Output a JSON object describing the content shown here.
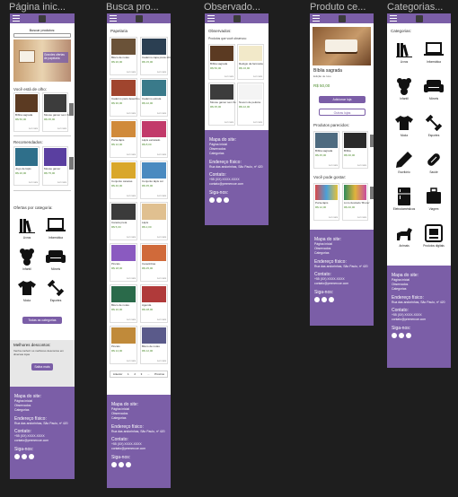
{
  "frames": {
    "home": "Página inic...",
    "search": "Busca pro...",
    "observed": "Observado...",
    "product": "Produto ce...",
    "categories": "Categorias..."
  },
  "colors": {
    "brand": "#7b5ea7",
    "background": "#1e1e1e"
  },
  "icons": {
    "menu": "hamburger-icon",
    "logo": "logo-icon"
  },
  "home": {
    "search_label": "Buscar produtos:",
    "banner_title": "Grandes ofertas de papelaria",
    "watching_title": "Você está de olho:",
    "watching": [
      {
        "name": "Bíblia sagrada",
        "price": "R$ 50,00"
      },
      {
        "name": "Mouse gamer sem fio",
        "price": "R$ 35,00"
      }
    ],
    "recommended_title": "Recomendados:",
    "recommended": [
      {
        "name": "Jogo de lápis",
        "price": "R$ 20,00"
      },
      {
        "name": "Mouse gamer",
        "price": "R$ 75,00"
      }
    ],
    "link": "Ler mais",
    "categories_title": "Ofertas por categoria:",
    "categories": [
      "Livros",
      "Informática",
      "Infantil",
      "Móveis",
      "Moda",
      "Esportes"
    ],
    "all_categories_btn": "Todas as categorias",
    "discounts_title": "Melhores descontos:",
    "discounts_text": "Venha conferir os melhores descontos em diversas lojas",
    "discounts_btn": "Saiba mais"
  },
  "search": {
    "title": "Papelaria",
    "items": [
      {
        "name": "Bloco de notas",
        "price": "R$ 20,00"
      },
      {
        "name": "Caderno capa preta 10m.",
        "price": "R$ 15,00"
      },
      {
        "name": "Caderno para desenho A5",
        "price": "R$ 30,00"
      },
      {
        "name": "Caderno estrela",
        "price": "R$ 22,00"
      },
      {
        "name": "Porta-lápis",
        "price": "R$ 12,00"
      },
      {
        "name": "Lápis estrelado",
        "price": "R$ 8,00"
      },
      {
        "name": "Conjunto canetas",
        "price": "R$ 40,00"
      },
      {
        "name": "Conjunto lápis cor",
        "price": "R$ 35,00"
      },
      {
        "name": "Caneta preta",
        "price": "R$ 5,00"
      },
      {
        "name": "Lápis",
        "price": "R$ 2,00"
      },
      {
        "name": "Pincéis",
        "price": "R$ 18,00"
      },
      {
        "name": "Canetinhas",
        "price": "R$ 25,00"
      },
      {
        "name": "Bloco de notas",
        "price": "R$ 10,00"
      },
      {
        "name": "Agenda",
        "price": "R$ 28,00"
      },
      {
        "name": "Pincéis",
        "price": "R$ 14,00"
      },
      {
        "name": "Bloco de notas",
        "price": "R$ 12,00"
      }
    ],
    "link": "Ler mais",
    "pagination": [
      "Anterior",
      "1",
      "2",
      "3",
      "...",
      "Próximo"
    ]
  },
  "observed": {
    "title": "Observados:",
    "subtitle": "Produtos que você observou:",
    "items": [
      {
        "name": "Bíblia sagrada",
        "price": "R$ 50,00"
      },
      {
        "name": "Relógio da farmácia",
        "price": "R$ 16,90"
      },
      {
        "name": "Mouse gamer sem fio",
        "price": "R$ 35,00"
      },
      {
        "name": "Nuvem de pelúcia",
        "price": "R$ 22,00"
      }
    ],
    "link": "Ler mais"
  },
  "product": {
    "name": "Bíblia sagrada",
    "subtitle": "Edição de luxo",
    "price": "R$ 50,00",
    "add_btn": "Adicionar loja",
    "other_btn": "Outras lojas",
    "related_title": "Produtos parecidos:",
    "related": [
      {
        "name": "Bíblia sagrada",
        "price": "R$ 45,00"
      },
      {
        "name": "Bíblia",
        "price": "R$ 30,00"
      }
    ],
    "liked_title": "Você pode gostar:",
    "liked": [
      {
        "name": "Porta-lápis",
        "price": "R$ 12,00"
      },
      {
        "name": "Livro ilustrado 'Bruno'",
        "price": "R$ 40,00"
      }
    ],
    "link": "Ler mais"
  },
  "categories": {
    "title": "Categorias:",
    "items": [
      "Livros",
      "Informática",
      "Infantil",
      "Móveis",
      "Moda",
      "Esportes",
      "Escritório",
      "Saúde",
      "Eletrodomésticos",
      "Viagem",
      "Animais",
      "Produtos digitais"
    ]
  },
  "footer": {
    "sitemap_title": "Mapa do site:",
    "sitemap": [
      "Página inicial",
      "Observados",
      "Categorias"
    ],
    "address_title": "Endereço físico:",
    "address": "Rua das andorinhas, São Paulo, nº 420",
    "contact_title": "Contato:",
    "phone": "+55 (XX) XXXX-XXXX",
    "email": "contato@premercoe.com",
    "social_title": "Siga-nos:"
  }
}
